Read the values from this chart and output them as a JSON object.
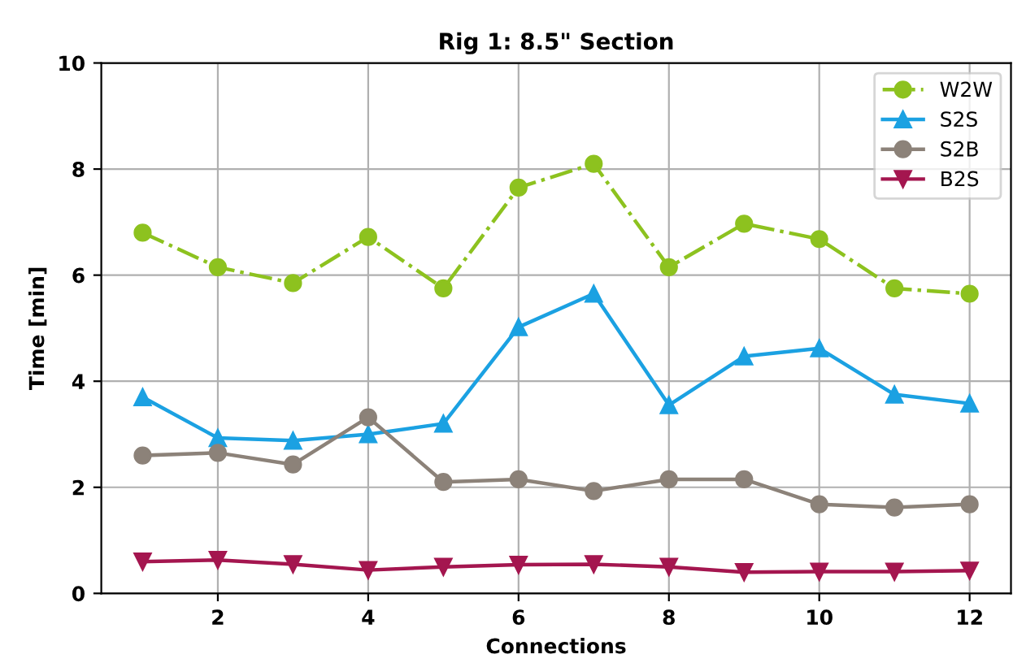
{
  "chart_data": {
    "type": "line",
    "title": "Rig 1: 8.5\" Section",
    "xlabel": "Connections",
    "ylabel": "Time [min]",
    "x": [
      1,
      2,
      3,
      4,
      5,
      6,
      7,
      8,
      9,
      10,
      11,
      12
    ],
    "xlim": [
      0.45,
      12.55
    ],
    "xticks": [
      2,
      4,
      6,
      8,
      10,
      12
    ],
    "ylim": [
      0,
      10
    ],
    "yticks": [
      0,
      2,
      4,
      6,
      8,
      10
    ],
    "grid": true,
    "legend": "top right",
    "series": [
      {
        "name": "W2W",
        "color": "#8dc21f",
        "marker": "circle",
        "line_style": "dashdot",
        "values": [
          6.8,
          6.15,
          5.85,
          6.72,
          5.75,
          7.65,
          8.1,
          6.15,
          6.97,
          6.68,
          5.75,
          5.65
        ]
      },
      {
        "name": "S2S",
        "color": "#1ba1e2",
        "marker": "triangle",
        "line_style": "solid",
        "values": [
          3.7,
          2.93,
          2.88,
          3.0,
          3.2,
          5.02,
          5.65,
          3.55,
          4.47,
          4.62,
          3.75,
          3.58
        ]
      },
      {
        "name": "S2B",
        "color": "#8c8279",
        "marker": "circle",
        "line_style": "solid",
        "values": [
          2.6,
          2.65,
          2.43,
          3.32,
          2.1,
          2.15,
          1.93,
          2.15,
          2.15,
          1.68,
          1.62,
          1.68
        ]
      },
      {
        "name": "B2S",
        "color": "#a4164f",
        "marker": "triangle_down",
        "line_style": "solid",
        "values": [
          0.6,
          0.63,
          0.55,
          0.44,
          0.5,
          0.54,
          0.55,
          0.5,
          0.4,
          0.41,
          0.41,
          0.43
        ]
      }
    ]
  }
}
